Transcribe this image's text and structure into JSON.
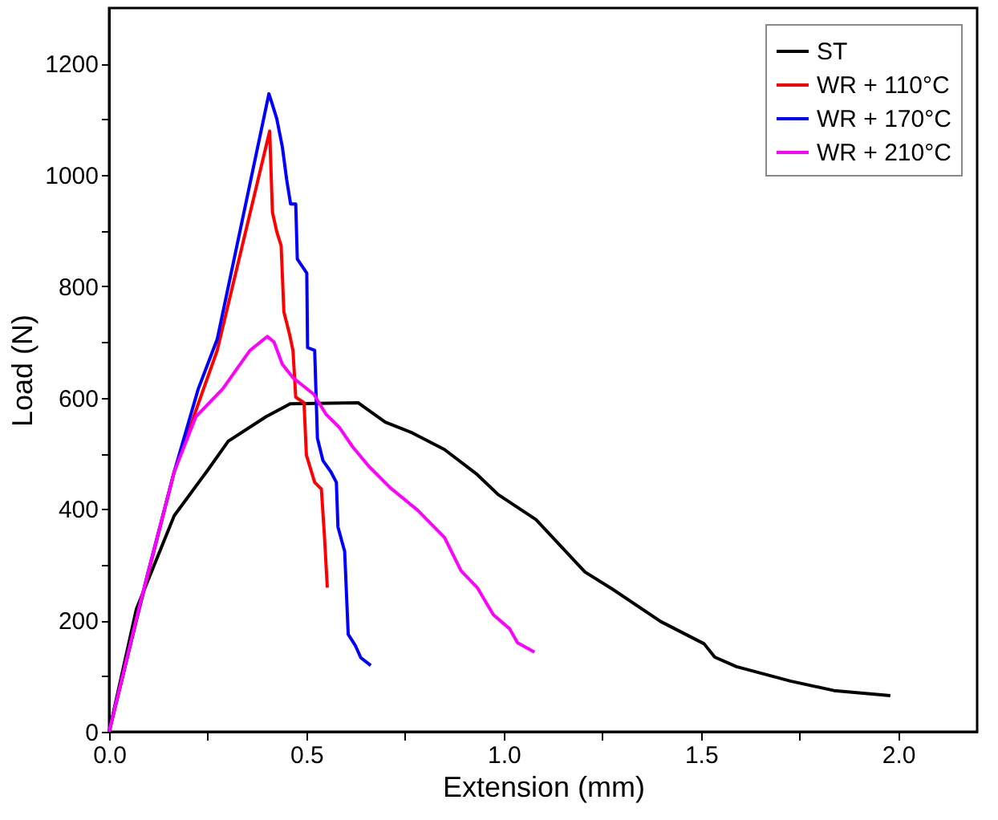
{
  "chart_data": {
    "type": "line",
    "xlabel": "Extension (mm)",
    "ylabel": "Load (N)",
    "xlim": [
      0,
      2.2
    ],
    "ylim": [
      0,
      1300
    ],
    "xticks": [
      {
        "value": 0,
        "label": "0.0"
      },
      {
        "value": 0.25,
        "label": null
      },
      {
        "value": 0.5,
        "label": "0.5"
      },
      {
        "value": 0.75,
        "label": null
      },
      {
        "value": 1.0,
        "label": "1.0"
      },
      {
        "value": 1.25,
        "label": null
      },
      {
        "value": 1.5,
        "label": "1.5"
      },
      {
        "value": 1.75,
        "label": null
      },
      {
        "value": 2.0,
        "label": "2.0"
      }
    ],
    "yticks": [
      0,
      {
        "value": 100,
        "label": null
      },
      200,
      {
        "value": 300,
        "label": null
      },
      400,
      {
        "value": 500,
        "label": null
      },
      600,
      {
        "value": 700,
        "label": null
      },
      800,
      {
        "value": 900,
        "label": null
      },
      1000,
      {
        "value": 1100,
        "label": null
      },
      1200
    ],
    "grid": false,
    "legend": "top right",
    "marker": "none",
    "line_style": "solid",
    "series": [
      {
        "name": "ST",
        "color": "#000000",
        "x": [
          0,
          0.069,
          0.165,
          0.247,
          0.302,
          0.398,
          0.459,
          0.631,
          0.7,
          0.768,
          0.85,
          0.933,
          0.986,
          1.082,
          1.206,
          1.274,
          1.398,
          1.508,
          1.535,
          1.59,
          1.727,
          1.837,
          1.98
        ],
        "values": [
          0,
          220,
          388,
          467,
          522,
          566,
          589,
          591,
          556,
          537,
          507,
          462,
          426,
          381,
          287,
          257,
          198,
          158,
          134,
          117,
          91,
          74,
          65
        ]
      },
      {
        "name": "WR + 110°C",
        "color": "#ff0000",
        "x": [
          0,
          0.069,
          0.165,
          0.274,
          0.407,
          0.414,
          0.425,
          0.436,
          0.443,
          0.457,
          0.466,
          0.473,
          0.494,
          0.5,
          0.521,
          0.538,
          0.546,
          0.553
        ],
        "values": [
          0,
          200,
          467,
          685,
          1079,
          933,
          898,
          873,
          754,
          715,
          685,
          601,
          591,
          497,
          448,
          436,
          349,
          259
        ]
      },
      {
        "name": "WR + 170°C",
        "color": "#0000ff",
        "x": [
          0,
          0.096,
          0.165,
          0.226,
          0.274,
          0.405,
          0.412,
          0.425,
          0.439,
          0.45,
          0.46,
          0.473,
          0.477,
          0.501,
          0.503,
          0.521,
          0.528,
          0.542,
          0.562,
          0.576,
          0.58,
          0.597,
          0.606,
          0.624,
          0.638,
          0.663
        ],
        "values": [
          0,
          279,
          467,
          616,
          705,
          1146,
          1131,
          1101,
          1051,
          992,
          948,
          948,
          849,
          824,
          690,
          685,
          527,
          487,
          467,
          448,
          368,
          324,
          175,
          155,
          133,
          119
        ]
      },
      {
        "name": "WR + 210°C",
        "color": "#ff00ff",
        "x": [
          0,
          0.082,
          0.165,
          0.22,
          0.288,
          0.357,
          0.401,
          0.418,
          0.439,
          0.466,
          0.519,
          0.549,
          0.583,
          0.617,
          0.658,
          0.713,
          0.782,
          0.85,
          0.892,
          0.933,
          0.974,
          1.015,
          1.035,
          1.078
        ],
        "values": [
          0,
          240,
          467,
          566,
          616,
          685,
          710,
          700,
          660,
          636,
          606,
          571,
          547,
          512,
          477,
          438,
          398,
          349,
          289,
          259,
          210,
          185,
          160,
          143
        ]
      }
    ]
  }
}
